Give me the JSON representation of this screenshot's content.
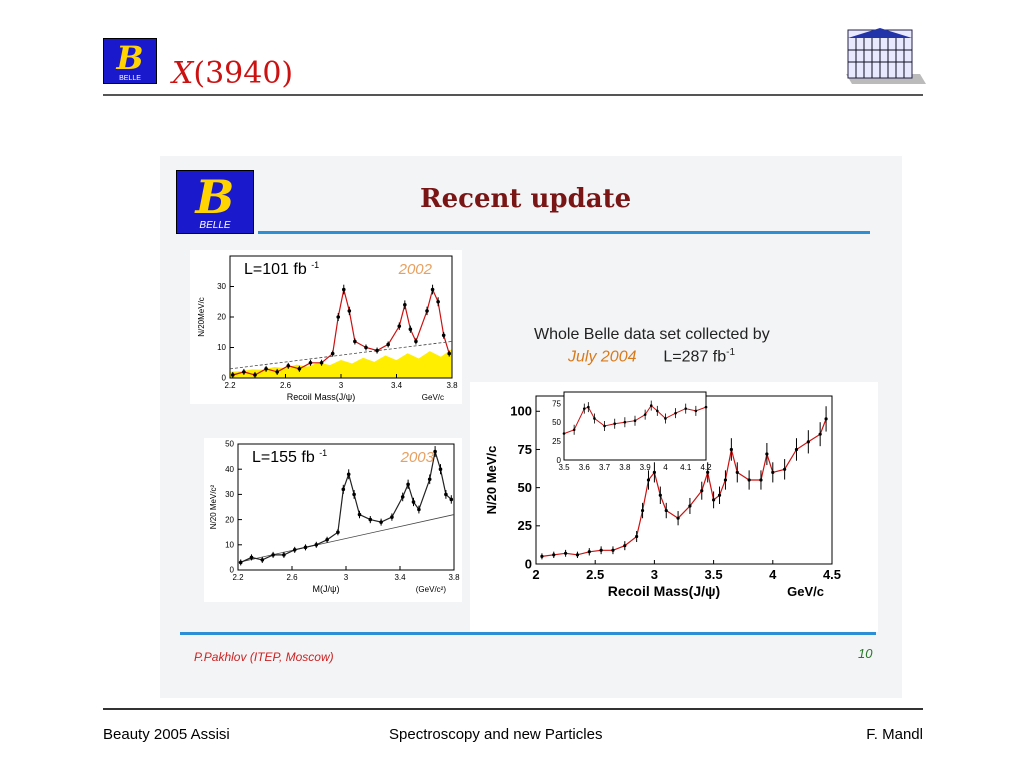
{
  "header": {
    "title_x": "X",
    "title_rest": "(3940)",
    "logo_text": "BELLE"
  },
  "slide": {
    "title": "Recent update",
    "caption_line1": "Whole Belle data set collected by",
    "caption_date": "July  2004",
    "caption_lumi": "L=287 fb",
    "caption_lumi_exp": "-1",
    "credit": "P.Pakhlov (ITEP, Moscow)",
    "page_number": "10"
  },
  "footer": {
    "left": "Beauty 2005  Assisi",
    "center": "Spectroscopy  and new Particles",
    "right": "F. Mandl"
  },
  "chart_data": [
    {
      "type": "scatter",
      "id": "plot-2002",
      "title": "L=101 fb",
      "title_exp": "-1",
      "year": "2002",
      "xlabel": "Recoil Mass(J/ψ)",
      "xunit": "GeV/c",
      "ylabel": "N/20MeV/c",
      "xlim": [
        2.2,
        3.8
      ],
      "ylim": [
        0,
        40
      ],
      "xticks": [
        "2.2",
        "2.6",
        "3",
        "3.4",
        "3.8"
      ],
      "yticks": [
        "0",
        "10",
        "20",
        "30"
      ],
      "x": [
        2.22,
        2.3,
        2.38,
        2.46,
        2.54,
        2.62,
        2.7,
        2.78,
        2.86,
        2.94,
        2.98,
        3.02,
        3.06,
        3.1,
        3.18,
        3.26,
        3.34,
        3.42,
        3.46,
        3.5,
        3.54,
        3.62,
        3.66,
        3.7,
        3.74,
        3.78
      ],
      "y": [
        1,
        2,
        1,
        3,
        2,
        4,
        3,
        5,
        5,
        8,
        20,
        29,
        22,
        12,
        10,
        9,
        11,
        17,
        24,
        16,
        12,
        22,
        29,
        25,
        14,
        8
      ]
    },
    {
      "type": "scatter",
      "id": "plot-2003",
      "title": "L=155 fb",
      "title_exp": "-1",
      "year": "2003",
      "xlabel": "M(J/ψ)",
      "xunit": "(GeV/c²)",
      "ylabel": "N/20 MeV/c²",
      "xlim": [
        2.2,
        3.8
      ],
      "ylim": [
        0,
        50
      ],
      "xticks": [
        "2.2",
        "2.6",
        "3",
        "3.4",
        "3.8"
      ],
      "yticks": [
        "0",
        "10",
        "20",
        "30",
        "40",
        "50"
      ],
      "x": [
        2.22,
        2.3,
        2.38,
        2.46,
        2.54,
        2.62,
        2.7,
        2.78,
        2.86,
        2.94,
        2.98,
        3.02,
        3.06,
        3.1,
        3.18,
        3.26,
        3.34,
        3.42,
        3.46,
        3.5,
        3.54,
        3.62,
        3.66,
        3.7,
        3.74,
        3.78
      ],
      "y": [
        3,
        5,
        4,
        6,
        6,
        8,
        9,
        10,
        12,
        15,
        32,
        38,
        30,
        22,
        20,
        19,
        21,
        29,
        34,
        27,
        24,
        36,
        47,
        40,
        30,
        28
      ]
    },
    {
      "type": "scatter",
      "id": "plot-2004",
      "xlabel": "Recoil Mass(J/ψ)",
      "xunit": "GeV/c",
      "ylabel": "N/20 MeV/c",
      "xlim": [
        2,
        4.5
      ],
      "ylim": [
        0,
        110
      ],
      "xticks": [
        "2",
        "2.5",
        "3",
        "3.5",
        "4",
        "4.5"
      ],
      "yticks": [
        "0",
        "25",
        "50",
        "75",
        "100"
      ],
      "x": [
        2.05,
        2.15,
        2.25,
        2.35,
        2.45,
        2.55,
        2.65,
        2.75,
        2.85,
        2.9,
        2.95,
        3.0,
        3.05,
        3.1,
        3.2,
        3.3,
        3.4,
        3.45,
        3.5,
        3.55,
        3.6,
        3.65,
        3.7,
        3.8,
        3.9,
        3.95,
        4.0,
        4.1,
        4.2,
        4.3,
        4.4,
        4.45
      ],
      "y": [
        5,
        6,
        7,
        6,
        8,
        9,
        9,
        12,
        18,
        35,
        55,
        60,
        45,
        35,
        30,
        38,
        48,
        60,
        42,
        45,
        55,
        75,
        60,
        55,
        55,
        72,
        60,
        62,
        75,
        80,
        85,
        95
      ],
      "inset": {
        "xlim": [
          3.5,
          4.2
        ],
        "ylim": [
          0,
          90
        ],
        "xticks": [
          "3.5",
          "3.6",
          "3.7",
          "3.8",
          "3.9",
          "4",
          "4.1",
          "4.2"
        ],
        "yticks": [
          "0",
          "25",
          "50",
          "75"
        ],
        "x": [
          3.5,
          3.55,
          3.6,
          3.62,
          3.65,
          3.7,
          3.75,
          3.8,
          3.85,
          3.9,
          3.93,
          3.96,
          4.0,
          4.05,
          4.1,
          4.15,
          4.2
        ],
        "y": [
          35,
          40,
          68,
          70,
          55,
          45,
          48,
          50,
          52,
          60,
          72,
          65,
          55,
          62,
          68,
          65,
          70
        ]
      }
    }
  ]
}
